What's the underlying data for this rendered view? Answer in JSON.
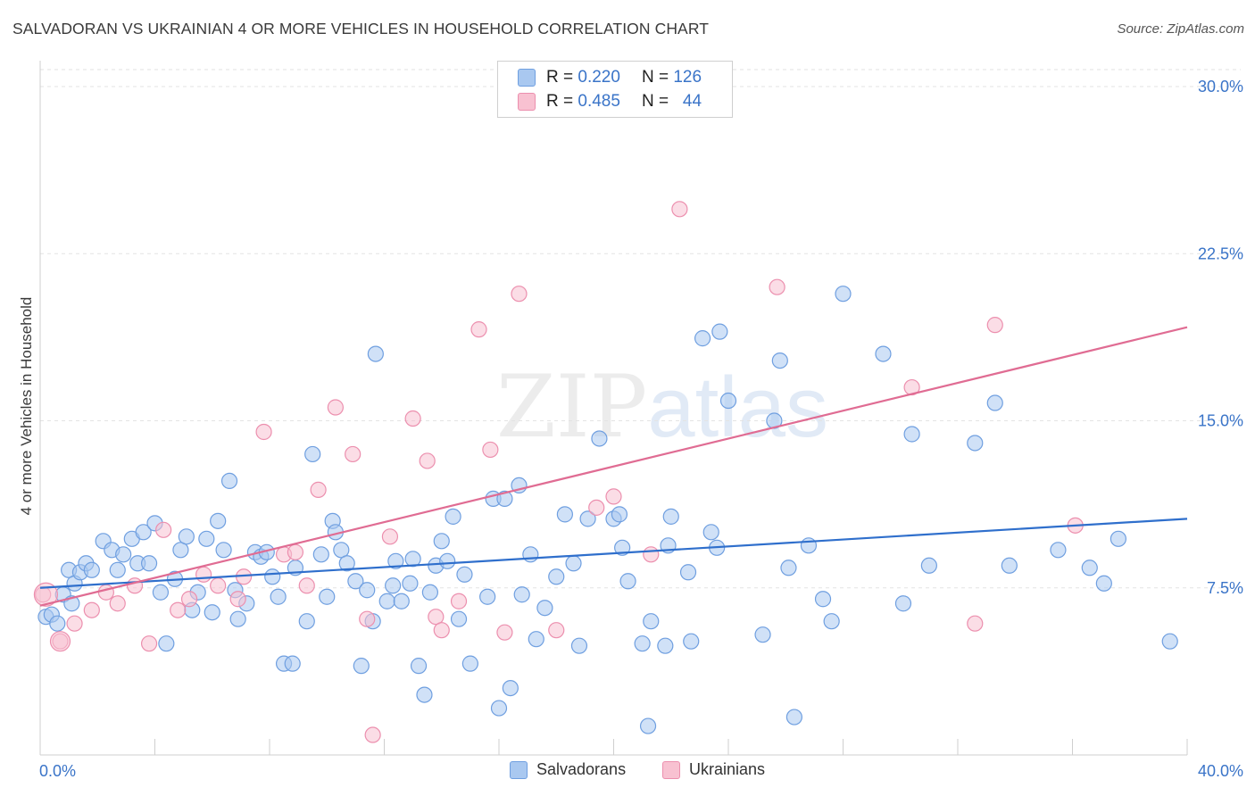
{
  "title": "SALVADORAN VS UKRAINIAN 4 OR MORE VEHICLES IN HOUSEHOLD CORRELATION CHART",
  "source": "Source: ZipAtlas.com",
  "watermark": {
    "zip": "ZIP",
    "atlas": "atlas"
  },
  "legend": {
    "rows": [
      {
        "r_label": "R = ",
        "r_value": "0.220",
        "n_label": "N = ",
        "n_value": "126",
        "color": "#a9c8f0",
        "border": "#6f9fe0"
      },
      {
        "r_label": "R = ",
        "r_value": "0.485",
        "n_label": "N = ",
        "n_value": "44",
        "color": "#f8c1d1",
        "border": "#ec8fae"
      }
    ]
  },
  "bottom_legend": [
    {
      "label": "Salvadorans",
      "color": "#a9c8f0",
      "border": "#6f9fe0"
    },
    {
      "label": "Ukrainians",
      "color": "#f8c1d1",
      "border": "#ec8fae"
    }
  ],
  "chart_data": {
    "type": "scatter",
    "title": "SALVADORAN VS UKRAINIAN 4 OR MORE VEHICLES IN HOUSEHOLD CORRELATION CHART",
    "xlabel": "",
    "ylabel": "4 or more Vehicles in Household",
    "xlim": [
      0,
      40
    ],
    "ylim": [
      0,
      32
    ],
    "x_tick_labels": [
      "0.0%",
      "40.0%"
    ],
    "y_ticks": [
      7.5,
      15.0,
      22.5,
      30.0
    ],
    "y_tick_labels": [
      "7.5%",
      "15.0%",
      "22.5%",
      "30.0%"
    ],
    "grid": "horizontal dashed",
    "series": [
      {
        "name": "Salvadorans",
        "color": "#6f9fe0",
        "fill": "#a9c8f0",
        "trend": {
          "x": [
            0,
            40
          ],
          "y": [
            7.5,
            10.6
          ]
        },
        "points": [
          [
            0.2,
            6.2
          ],
          [
            0.4,
            6.3
          ],
          [
            0.6,
            5.9
          ],
          [
            0.8,
            7.2
          ],
          [
            1.0,
            8.3
          ],
          [
            1.1,
            6.8
          ],
          [
            1.2,
            7.7
          ],
          [
            1.4,
            8.2
          ],
          [
            1.6,
            8.6
          ],
          [
            1.8,
            8.3
          ],
          [
            2.2,
            9.6
          ],
          [
            2.5,
            9.2
          ],
          [
            2.7,
            8.3
          ],
          [
            2.9,
            9.0
          ],
          [
            3.2,
            9.7
          ],
          [
            3.4,
            8.6
          ],
          [
            3.6,
            10.0
          ],
          [
            3.8,
            8.6
          ],
          [
            4.0,
            10.4
          ],
          [
            4.2,
            7.3
          ],
          [
            4.4,
            5.0
          ],
          [
            4.7,
            7.9
          ],
          [
            4.9,
            9.2
          ],
          [
            5.1,
            9.8
          ],
          [
            5.3,
            6.5
          ],
          [
            5.5,
            7.3
          ],
          [
            5.8,
            9.7
          ],
          [
            6.0,
            6.4
          ],
          [
            6.2,
            10.5
          ],
          [
            6.4,
            9.2
          ],
          [
            6.6,
            12.3
          ],
          [
            6.8,
            7.4
          ],
          [
            6.9,
            6.1
          ],
          [
            7.2,
            6.8
          ],
          [
            7.5,
            9.1
          ],
          [
            7.7,
            8.9
          ],
          [
            7.9,
            9.1
          ],
          [
            8.1,
            8.0
          ],
          [
            8.3,
            7.1
          ],
          [
            8.5,
            4.1
          ],
          [
            8.8,
            4.1
          ],
          [
            8.9,
            8.4
          ],
          [
            9.3,
            6.0
          ],
          [
            9.5,
            13.5
          ],
          [
            9.8,
            9.0
          ],
          [
            10.0,
            7.1
          ],
          [
            10.2,
            10.5
          ],
          [
            10.3,
            10.0
          ],
          [
            10.5,
            9.2
          ],
          [
            10.7,
            8.6
          ],
          [
            11.0,
            7.8
          ],
          [
            11.2,
            4.0
          ],
          [
            11.4,
            7.4
          ],
          [
            11.6,
            6.0
          ],
          [
            11.7,
            18.0
          ],
          [
            12.1,
            6.9
          ],
          [
            12.3,
            7.6
          ],
          [
            12.4,
            8.7
          ],
          [
            12.6,
            6.9
          ],
          [
            12.9,
            7.7
          ],
          [
            13.0,
            8.8
          ],
          [
            13.2,
            4.0
          ],
          [
            13.4,
            2.7
          ],
          [
            13.6,
            7.3
          ],
          [
            13.8,
            8.5
          ],
          [
            14.0,
            9.6
          ],
          [
            14.2,
            8.7
          ],
          [
            14.4,
            10.7
          ],
          [
            14.6,
            6.1
          ],
          [
            14.8,
            8.1
          ],
          [
            15.0,
            4.1
          ],
          [
            15.6,
            7.1
          ],
          [
            15.8,
            11.5
          ],
          [
            16.0,
            2.1
          ],
          [
            16.2,
            11.5
          ],
          [
            16.4,
            3.0
          ],
          [
            16.7,
            12.1
          ],
          [
            16.8,
            7.2
          ],
          [
            17.1,
            9.0
          ],
          [
            17.3,
            5.2
          ],
          [
            17.6,
            6.6
          ],
          [
            18.0,
            8.0
          ],
          [
            18.3,
            10.8
          ],
          [
            18.6,
            8.6
          ],
          [
            18.8,
            4.9
          ],
          [
            19.1,
            10.6
          ],
          [
            19.5,
            14.2
          ],
          [
            20.0,
            10.6
          ],
          [
            20.2,
            10.8
          ],
          [
            20.3,
            9.3
          ],
          [
            20.5,
            7.8
          ],
          [
            21.0,
            5.0
          ],
          [
            21.2,
            1.3
          ],
          [
            21.3,
            6.0
          ],
          [
            21.8,
            4.9
          ],
          [
            21.9,
            9.4
          ],
          [
            22.0,
            10.7
          ],
          [
            22.6,
            8.2
          ],
          [
            22.7,
            5.1
          ],
          [
            23.1,
            18.7
          ],
          [
            23.4,
            10.0
          ],
          [
            23.6,
            9.3
          ],
          [
            23.7,
            19.0
          ],
          [
            24.0,
            15.9
          ],
          [
            25.2,
            5.4
          ],
          [
            25.6,
            15.0
          ],
          [
            25.8,
            17.7
          ],
          [
            26.1,
            8.4
          ],
          [
            26.3,
            1.7
          ],
          [
            26.8,
            9.4
          ],
          [
            27.3,
            7.0
          ],
          [
            27.6,
            6.0
          ],
          [
            28.0,
            20.7
          ],
          [
            29.4,
            18.0
          ],
          [
            30.1,
            6.8
          ],
          [
            30.4,
            14.4
          ],
          [
            31.0,
            8.5
          ],
          [
            32.6,
            14.0
          ],
          [
            33.3,
            15.8
          ],
          [
            33.8,
            8.5
          ],
          [
            35.5,
            9.2
          ],
          [
            36.6,
            8.4
          ],
          [
            37.1,
            7.7
          ],
          [
            37.6,
            9.7
          ],
          [
            39.4,
            5.1
          ]
        ]
      },
      {
        "name": "Ukrainians",
        "color": "#ec8fae",
        "fill": "#f8c1d1",
        "trend": {
          "x": [
            0,
            40
          ],
          "y": [
            6.7,
            19.2
          ]
        },
        "points": [
          [
            0.1,
            7.2
          ],
          [
            0.7,
            5.1
          ],
          [
            1.2,
            5.9
          ],
          [
            1.8,
            6.5
          ],
          [
            2.3,
            7.3
          ],
          [
            2.7,
            6.8
          ],
          [
            3.3,
            7.6
          ],
          [
            3.8,
            5.0
          ],
          [
            4.3,
            10.1
          ],
          [
            4.8,
            6.5
          ],
          [
            5.2,
            7.0
          ],
          [
            5.7,
            8.1
          ],
          [
            6.2,
            7.6
          ],
          [
            6.9,
            7.0
          ],
          [
            7.1,
            8.0
          ],
          [
            7.8,
            14.5
          ],
          [
            8.5,
            9.0
          ],
          [
            8.9,
            9.1
          ],
          [
            9.3,
            7.6
          ],
          [
            9.7,
            11.9
          ],
          [
            10.3,
            15.6
          ],
          [
            10.9,
            13.5
          ],
          [
            11.4,
            6.1
          ],
          [
            11.6,
            0.9
          ],
          [
            12.2,
            9.8
          ],
          [
            13.0,
            15.1
          ],
          [
            13.5,
            13.2
          ],
          [
            13.8,
            6.2
          ],
          [
            14.0,
            5.6
          ],
          [
            14.6,
            6.9
          ],
          [
            15.3,
            19.1
          ],
          [
            15.7,
            13.7
          ],
          [
            16.2,
            5.5
          ],
          [
            16.7,
            20.7
          ],
          [
            18.0,
            5.6
          ],
          [
            19.4,
            11.1
          ],
          [
            20.0,
            11.6
          ],
          [
            21.3,
            9.0
          ],
          [
            22.3,
            24.5
          ],
          [
            25.7,
            21.0
          ],
          [
            30.4,
            16.5
          ],
          [
            32.6,
            5.9
          ],
          [
            33.3,
            19.3
          ],
          [
            36.1,
            10.3
          ]
        ]
      }
    ]
  }
}
